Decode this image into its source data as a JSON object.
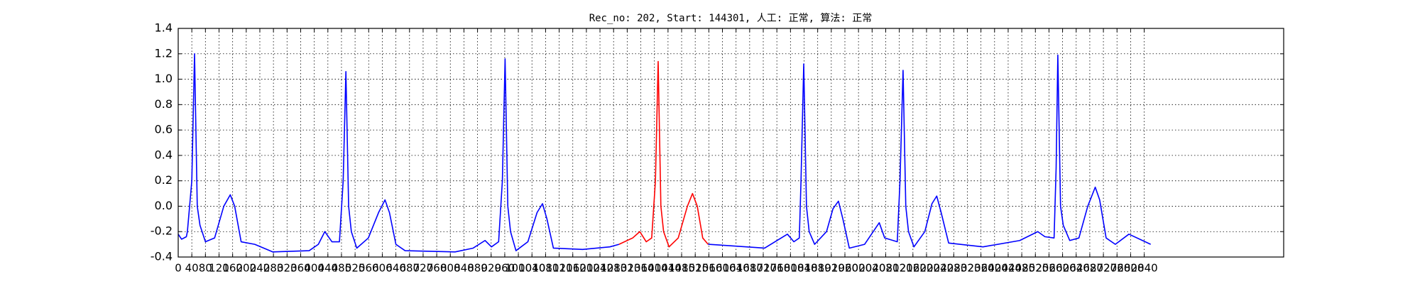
{
  "chart_data": {
    "type": "line",
    "title": "Rec_no: 202, Start: 144301, 人工: 正常, 算法: 正常",
    "xlim": [
      0,
      3250
    ],
    "ylim": [
      -0.4,
      1.4
    ],
    "xticks": [
      0,
      40,
      80,
      120,
      160,
      200,
      240,
      280,
      320,
      360,
      400,
      440,
      480,
      520,
      560,
      600,
      640,
      680,
      720,
      760,
      800,
      840,
      880,
      920,
      960,
      1000,
      1040,
      1080,
      1120,
      1160,
      1200,
      1240,
      1280,
      1320,
      1360,
      1400,
      1440,
      1480,
      1520,
      1560,
      1600,
      1640,
      1680,
      1720,
      1760,
      1800,
      1840,
      1880,
      1920,
      1960,
      2000,
      2040,
      2080,
      2120,
      2160,
      2200,
      2240,
      2280,
      2320,
      2360,
      2400,
      2440,
      2480,
      2520,
      2560,
      2600,
      2640,
      2680,
      2720,
      2760,
      2800,
      2840
    ],
    "yticks": [
      -0.4,
      -0.2,
      {
        "value": 0,
        "label": "0.0"
      },
      0.2,
      0.4,
      0.6,
      0.8,
      {
        "value": 1,
        "label": "1.0"
      },
      1.2,
      1.4
    ],
    "grid": true,
    "series": [
      {
        "color": "#0000ff",
        "x": [
          0,
          10,
          24,
          27,
          40,
          48,
          56,
          64,
          80,
          107,
          134,
          153,
          166,
          185,
          225,
          278,
          385,
          412,
          431,
          452,
          474,
          485,
          493,
          501,
          509,
          525,
          559,
          589,
          608,
          621,
          640,
          667,
          814,
          867,
          902,
          921,
          942,
          953,
          961,
          969,
          977,
          993,
          1028,
          1055,
          1071,
          1084,
          1103,
          1189,
          1269,
          1296
        ],
        "values": [
          -0.22,
          -0.26,
          -0.24,
          -0.2,
          0.2,
          1.2,
          0.0,
          -0.15,
          -0.28,
          -0.25,
          0.0,
          0.09,
          0.0,
          -0.28,
          -0.3,
          -0.36,
          -0.35,
          -0.3,
          -0.2,
          -0.28,
          -0.28,
          0.2,
          1.06,
          0.0,
          -0.2,
          -0.33,
          -0.25,
          -0.05,
          0.05,
          -0.05,
          -0.3,
          -0.35,
          -0.36,
          -0.33,
          -0.27,
          -0.32,
          -0.28,
          0.2,
          1.16,
          0.0,
          -0.2,
          -0.35,
          -0.28,
          -0.05,
          0.02,
          -0.1,
          -0.33,
          -0.34,
          -0.32,
          -0.3
        ]
      },
      {
        "color": "#ff0000",
        "x": [
          1296,
          1336,
          1357,
          1376,
          1392,
          1403,
          1411,
          1419,
          1427,
          1443,
          1470,
          1497,
          1512,
          1526,
          1542,
          1558
        ],
        "values": [
          -0.3,
          -0.25,
          -0.2,
          -0.28,
          -0.25,
          0.2,
          1.14,
          0.0,
          -0.2,
          -0.32,
          -0.25,
          0.0,
          0.1,
          0.0,
          -0.25,
          -0.3
        ]
      },
      {
        "color": "#0000ff",
        "x": [
          1558,
          1617,
          1724,
          1791,
          1810,
          1826,
          1831,
          1839,
          1847,
          1855,
          1871,
          1906,
          1925,
          1941,
          1954,
          1973,
          2018,
          2061,
          2077,
          2114,
          2122,
          2131,
          2139,
          2147,
          2163,
          2195,
          2216,
          2230,
          2243,
          2265,
          2366,
          2474,
          2527,
          2548,
          2575,
          2581,
          2586,
          2594,
          2602,
          2621,
          2648,
          2674,
          2696,
          2709,
          2728,
          2755,
          2795,
          2835,
          2859
        ],
        "values": [
          -0.3,
          -0.31,
          -0.33,
          -0.22,
          -0.28,
          -0.25,
          0.2,
          1.12,
          0.0,
          -0.2,
          -0.3,
          -0.2,
          -0.02,
          0.04,
          -0.1,
          -0.33,
          -0.3,
          -0.13,
          -0.25,
          -0.28,
          0.2,
          1.07,
          0.0,
          -0.2,
          -0.32,
          -0.2,
          0.02,
          0.08,
          -0.05,
          -0.29,
          -0.32,
          -0.27,
          -0.2,
          -0.24,
          -0.25,
          0.3,
          1.19,
          0.0,
          -0.15,
          -0.27,
          -0.25,
          0.0,
          0.15,
          0.05,
          -0.25,
          -0.3,
          -0.22,
          -0.27,
          -0.3
        ]
      }
    ]
  }
}
